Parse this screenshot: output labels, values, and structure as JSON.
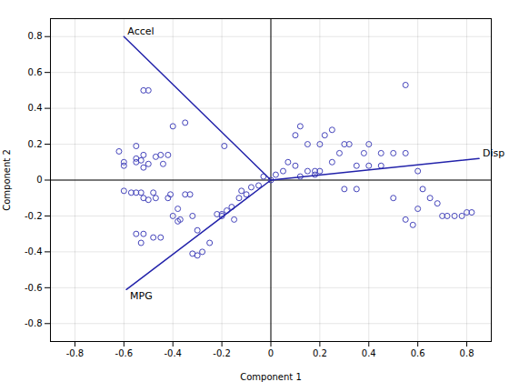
{
  "chart_data": {
    "type": "scatter",
    "xlabel": "Component 1",
    "ylabel": "Component 2",
    "xlim": [
      -0.9,
      0.9
    ],
    "ylim": [
      -0.9,
      0.9
    ],
    "xticks": [
      -0.8,
      -0.6,
      -0.4,
      -0.2,
      0,
      0.2,
      0.4,
      0.6,
      0.8
    ],
    "yticks": [
      -0.8,
      -0.6,
      -0.4,
      -0.2,
      0,
      0.2,
      0.4,
      0.6,
      0.8
    ],
    "grid": true,
    "series": [
      {
        "type": "scatter",
        "marker": "circle",
        "color": "#4444bb",
        "x": [
          -0.19,
          -0.55,
          -0.62,
          -0.52,
          -0.55,
          -0.57,
          -0.5,
          -0.48,
          -0.6,
          -0.55,
          -0.6,
          -0.55,
          -0.45,
          -0.44,
          -0.6,
          -0.5,
          -0.53,
          -0.47,
          -0.42,
          -0.4,
          -0.35,
          -0.5,
          -0.52,
          -0.52,
          -0.53,
          -0.52,
          -0.47,
          -0.52,
          -0.55,
          -0.53,
          -0.45,
          -0.48,
          -0.32,
          -0.33,
          -0.42,
          -0.41,
          -0.35,
          -0.38,
          -0.4,
          -0.37,
          -0.38,
          -0.3,
          -0.25,
          -0.28,
          -0.3,
          -0.32,
          -0.22,
          -0.2,
          -0.18,
          -0.16,
          -0.2,
          -0.15,
          -0.13,
          -0.1,
          -0.12,
          -0.08,
          -0.05,
          -0.03,
          0.0,
          0.02,
          0.05,
          0.07,
          0.1,
          0.12,
          0.15,
          0.18,
          0.2,
          0.22,
          0.25,
          0.3,
          0.15,
          0.1,
          0.12,
          0.18,
          0.2,
          0.25,
          0.28,
          0.32,
          0.35,
          0.38,
          0.4,
          0.45,
          0.5,
          0.55,
          0.55,
          0.6,
          0.62,
          0.65,
          0.68,
          0.7,
          0.72,
          0.75,
          0.78,
          0.8,
          0.82,
          0.6,
          0.55,
          0.58,
          0.5,
          0.45,
          0.4,
          0.35,
          0.3
        ],
        "values": [
          0.19,
          0.19,
          0.16,
          0.07,
          -0.07,
          -0.07,
          -0.11,
          -0.07,
          -0.06,
          0.1,
          0.1,
          0.12,
          0.14,
          0.09,
          0.08,
          0.09,
          0.11,
          0.13,
          0.14,
          0.3,
          0.32,
          0.5,
          0.5,
          0.14,
          -0.07,
          -0.1,
          -0.1,
          -0.3,
          -0.3,
          -0.35,
          -0.32,
          -0.32,
          -0.2,
          -0.08,
          -0.1,
          -0.08,
          -0.08,
          -0.16,
          -0.2,
          -0.22,
          -0.23,
          -0.28,
          -0.35,
          -0.4,
          -0.42,
          -0.41,
          -0.19,
          -0.19,
          -0.17,
          -0.15,
          -0.2,
          -0.22,
          -0.1,
          -0.08,
          -0.06,
          -0.04,
          -0.03,
          0.02,
          0.0,
          0.03,
          0.05,
          0.1,
          0.25,
          0.3,
          0.2,
          0.05,
          0.2,
          0.25,
          0.28,
          0.2,
          0.05,
          0.08,
          0.02,
          0.03,
          0.05,
          0.1,
          0.15,
          0.2,
          0.08,
          0.15,
          0.2,
          0.15,
          0.15,
          0.15,
          0.53,
          0.05,
          -0.05,
          -0.1,
          -0.13,
          -0.2,
          -0.2,
          -0.2,
          -0.2,
          -0.18,
          -0.18,
          -0.16,
          -0.22,
          -0.25,
          -0.1,
          0.08,
          0.08,
          -0.05,
          -0.05
        ]
      }
    ],
    "vectors": [
      {
        "label": "Accel",
        "color": "#2222aa",
        "x": [
          0,
          -0.6
        ],
        "y": [
          0,
          0.8
        ]
      },
      {
        "label": "MPG",
        "color": "#2222aa",
        "x": [
          0,
          -0.59
        ],
        "y": [
          0,
          -0.61
        ]
      },
      {
        "label": "Disp",
        "color": "#2222aa",
        "x": [
          0,
          0.85
        ],
        "y": [
          0,
          0.12
        ]
      }
    ]
  }
}
